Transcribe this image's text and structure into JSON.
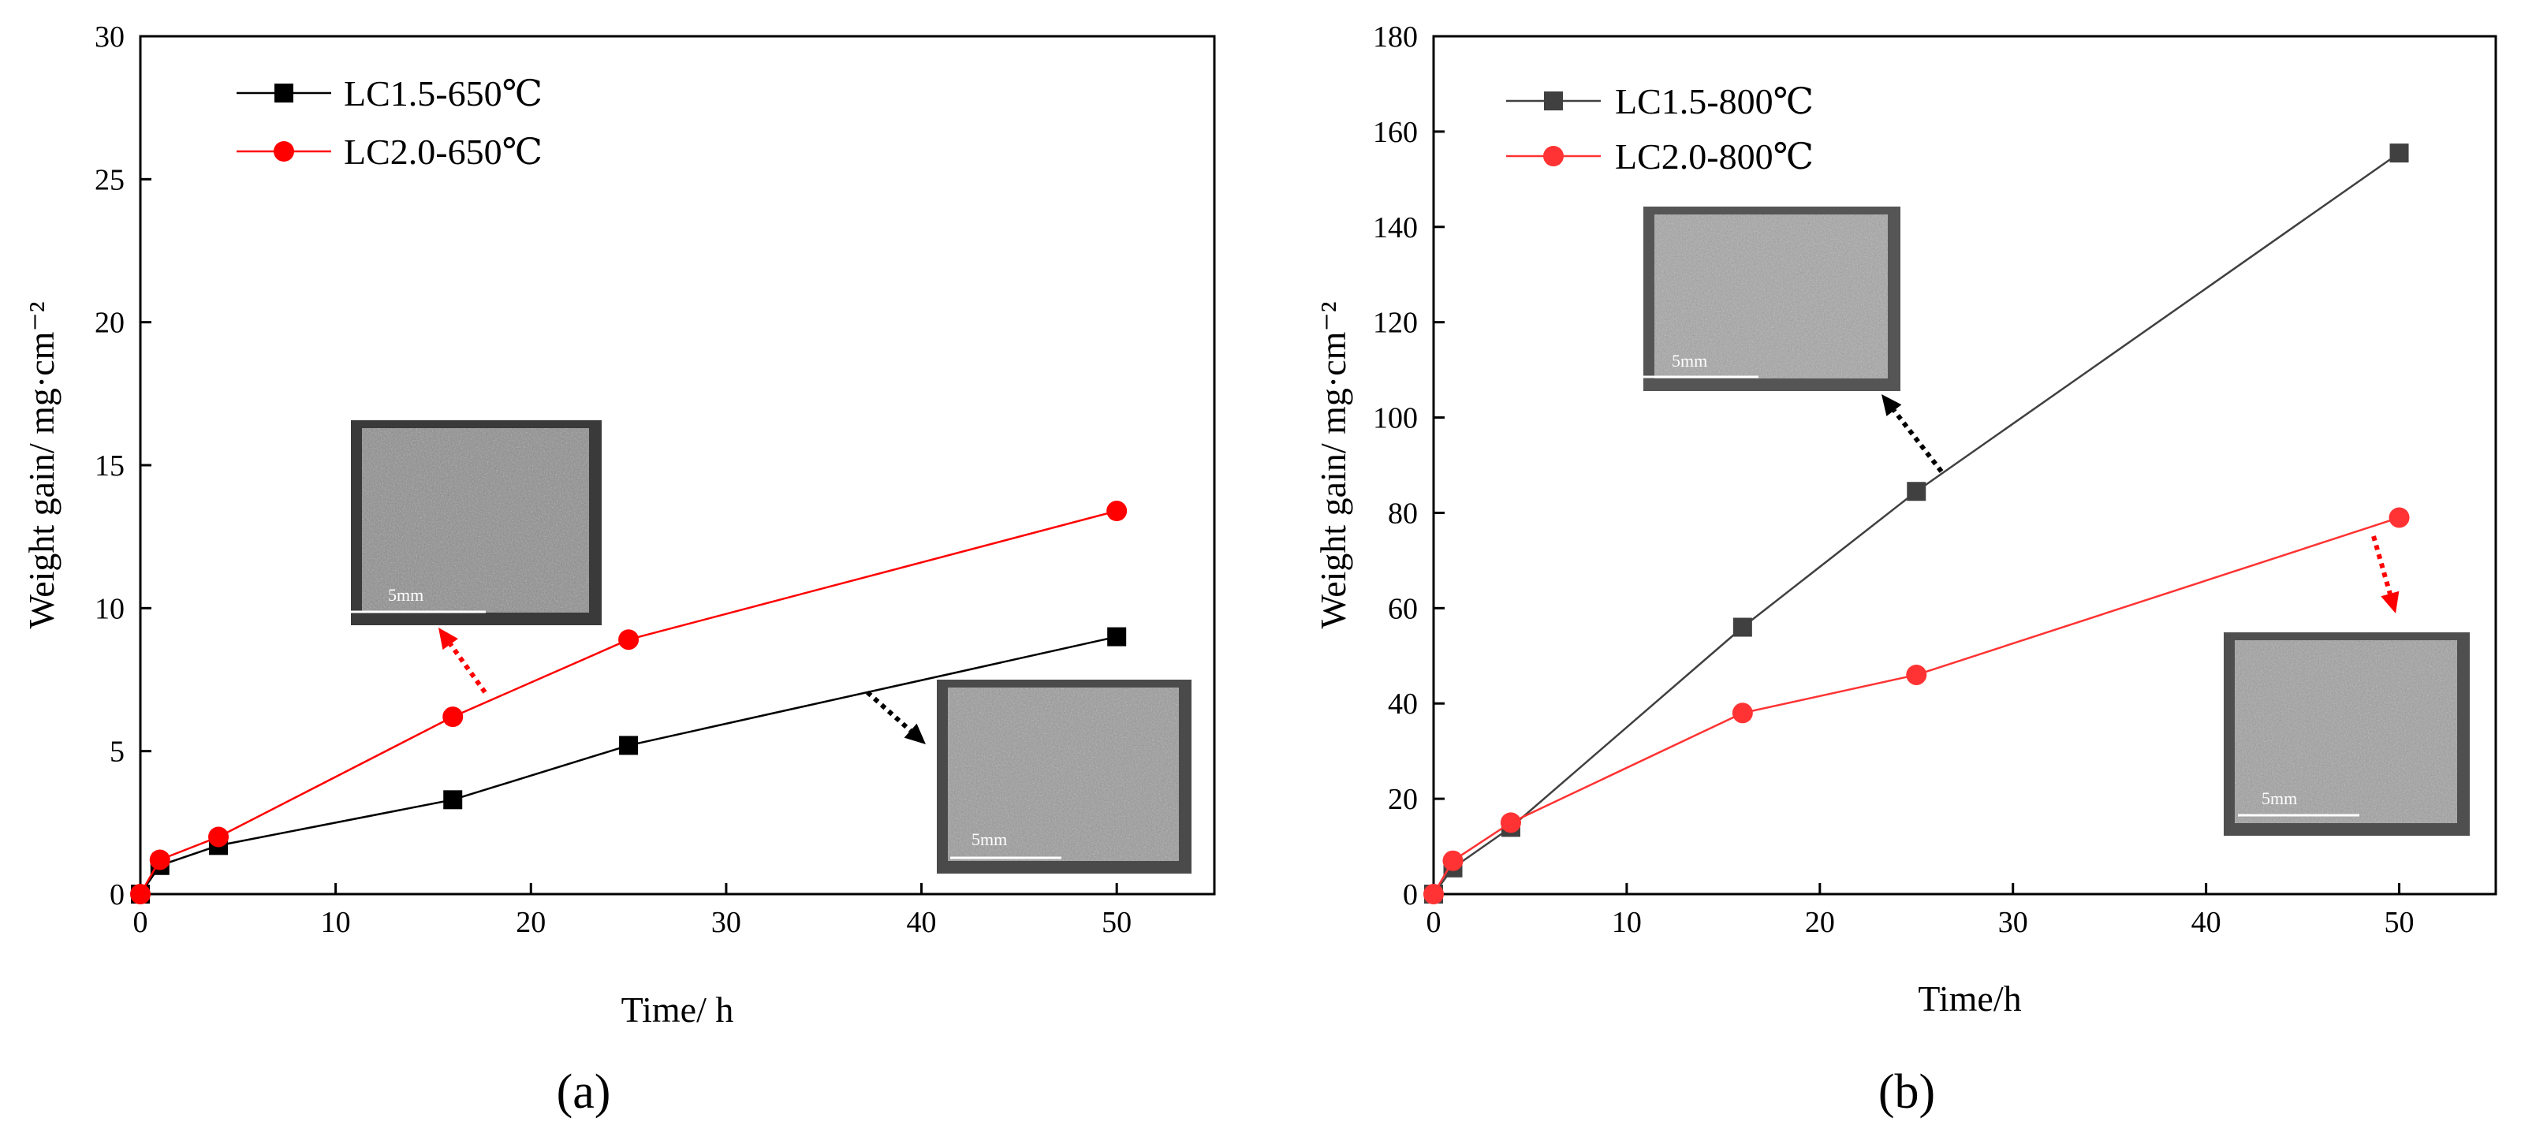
{
  "figure": {
    "panel_labels": [
      "(a)",
      "(b)"
    ]
  },
  "chart_data": [
    {
      "type": "line",
      "panel": "(a)",
      "xlabel": "Time/ h",
      "ylabel": "Weight gain/ mg·cm⁻²",
      "xlim": [
        0,
        55
      ],
      "ylim": [
        0,
        30
      ],
      "xticks": [
        0,
        10,
        20,
        30,
        40,
        50
      ],
      "yticks": [
        0,
        5,
        10,
        15,
        20,
        25,
        30
      ],
      "legend_position": "top-left",
      "series": [
        {
          "name": "LC1.5-650℃",
          "color": "#000000",
          "marker": "square",
          "x": [
            0,
            1,
            4,
            16,
            25,
            50
          ],
          "values": [
            0,
            1.0,
            1.7,
            3.3,
            5.2,
            9.0
          ]
        },
        {
          "name": "LC2.0-650℃",
          "color": "#ff0000",
          "marker": "circle",
          "x": [
            0,
            1,
            4,
            16,
            25,
            50
          ],
          "values": [
            0,
            1.2,
            2.0,
            6.2,
            8.9,
            13.4
          ]
        }
      ],
      "insets": [
        {
          "name": "LC2.0-650℃ sample micrograph",
          "scale_bar": "5mm",
          "arrow_color": "#ff0000"
        },
        {
          "name": "LC1.5-650℃ sample micrograph",
          "scale_bar": "5mm",
          "arrow_color": "#000000"
        }
      ]
    },
    {
      "type": "line",
      "panel": "(b)",
      "xlabel": "Time/h",
      "ylabel": "Weight gain/ mg·cm⁻²",
      "xlim": [
        0,
        55
      ],
      "ylim": [
        0,
        180
      ],
      "xticks": [
        0,
        10,
        20,
        30,
        40,
        50
      ],
      "yticks": [
        0,
        20,
        40,
        60,
        80,
        100,
        120,
        140,
        160,
        180
      ],
      "legend_position": "top-left",
      "series": [
        {
          "name": "LC1.5-800℃",
          "color": "#404040",
          "marker": "square",
          "x": [
            0,
            1,
            4,
            16,
            25,
            50
          ],
          "values": [
            0,
            5.5,
            14,
            56,
            84.5,
            155.5
          ]
        },
        {
          "name": "LC2.0-800℃",
          "color": "#ff3333",
          "marker": "circle",
          "x": [
            0,
            1,
            4,
            16,
            25,
            50
          ],
          "values": [
            0,
            7,
            15,
            38,
            46,
            79
          ]
        }
      ],
      "insets": [
        {
          "name": "LC1.5-800℃ sample micrograph",
          "scale_bar": "5mm",
          "arrow_color": "#000000"
        },
        {
          "name": "LC2.0-800℃ sample micrograph",
          "scale_bar": "5mm",
          "arrow_color": "#ff0000"
        }
      ]
    }
  ]
}
